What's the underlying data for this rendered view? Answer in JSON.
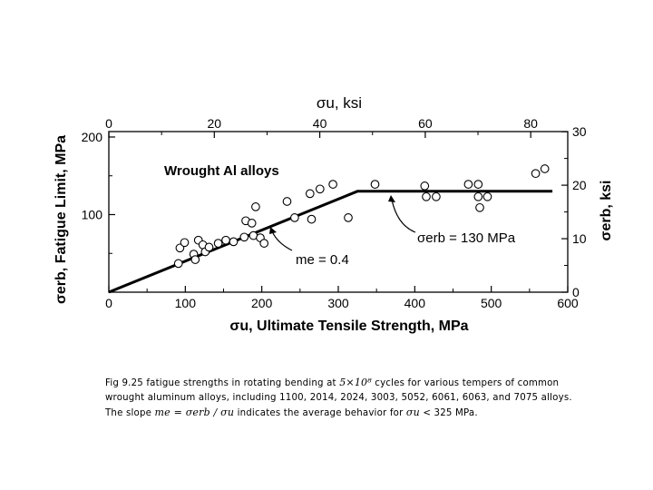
{
  "chart_data": {
    "type": "scatter",
    "title": "",
    "xlabel": "σu, Ultimate Tensile Strength, MPa",
    "ylabel": "σerb, Fatigue Limit, MPa",
    "top_axis_label": "σu, ksi",
    "right_axis_label": "σerb, ksi",
    "xlim": [
      0,
      600
    ],
    "ylim": [
      0,
      207
    ],
    "x_ticks": [
      "0",
      "100",
      "200",
      "300",
      "400",
      "500",
      "600"
    ],
    "y_ticks": [
      "100",
      "200"
    ],
    "top_ticks": [
      "0",
      "20",
      "40",
      "60",
      "80"
    ],
    "right_ticks": [
      "0",
      "10",
      "20",
      "30"
    ],
    "series_label": "Wrought Al alloys",
    "points": [
      {
        "x": 91,
        "y": 37
      },
      {
        "x": 93,
        "y": 57
      },
      {
        "x": 99,
        "y": 64
      },
      {
        "x": 111,
        "y": 49
      },
      {
        "x": 113,
        "y": 42
      },
      {
        "x": 117,
        "y": 67
      },
      {
        "x": 123,
        "y": 61
      },
      {
        "x": 126,
        "y": 52
      },
      {
        "x": 131,
        "y": 58
      },
      {
        "x": 143,
        "y": 63
      },
      {
        "x": 153,
        "y": 67
      },
      {
        "x": 163,
        "y": 65
      },
      {
        "x": 177,
        "y": 71
      },
      {
        "x": 179,
        "y": 92
      },
      {
        "x": 187,
        "y": 89
      },
      {
        "x": 189,
        "y": 73
      },
      {
        "x": 192,
        "y": 110
      },
      {
        "x": 198,
        "y": 70
      },
      {
        "x": 203,
        "y": 63
      },
      {
        "x": 233,
        "y": 117
      },
      {
        "x": 243,
        "y": 96
      },
      {
        "x": 263,
        "y": 127
      },
      {
        "x": 265,
        "y": 94
      },
      {
        "x": 276,
        "y": 133
      },
      {
        "x": 293,
        "y": 139
      },
      {
        "x": 313,
        "y": 96
      },
      {
        "x": 348,
        "y": 139
      },
      {
        "x": 413,
        "y": 137
      },
      {
        "x": 415,
        "y": 123
      },
      {
        "x": 428,
        "y": 123
      },
      {
        "x": 470,
        "y": 139
      },
      {
        "x": 483,
        "y": 139
      },
      {
        "x": 483,
        "y": 123
      },
      {
        "x": 485,
        "y": 109
      },
      {
        "x": 495,
        "y": 123
      },
      {
        "x": 558,
        "y": 153
      },
      {
        "x": 570,
        "y": 159
      }
    ],
    "trend_line": [
      [
        0,
        0
      ],
      [
        325,
        130
      ],
      [
        580,
        130
      ]
    ],
    "annotations": {
      "slope_label": "me = 0.4",
      "plateau_label": "σerb = 130 MPa"
    },
    "grid": false
  },
  "caption": {
    "line1_a": "Fig 9.25  fatigue strengths in rotating bending at",
    "cycles_math": "5×10⁸",
    "line1_b": "cycles for various tempers of common",
    "line2": "wrought aluminum alloys, including 1100, 2014, 2024, 3003, 5052, 6061, 6063, and 7075 alloys.",
    "line3_a": "The slope",
    "slope_math": "me = σerb / σu",
    "line3_b": "indicates the average behavior for",
    "sigma_math": "σu",
    "line3_c": "< 325 MPa."
  }
}
